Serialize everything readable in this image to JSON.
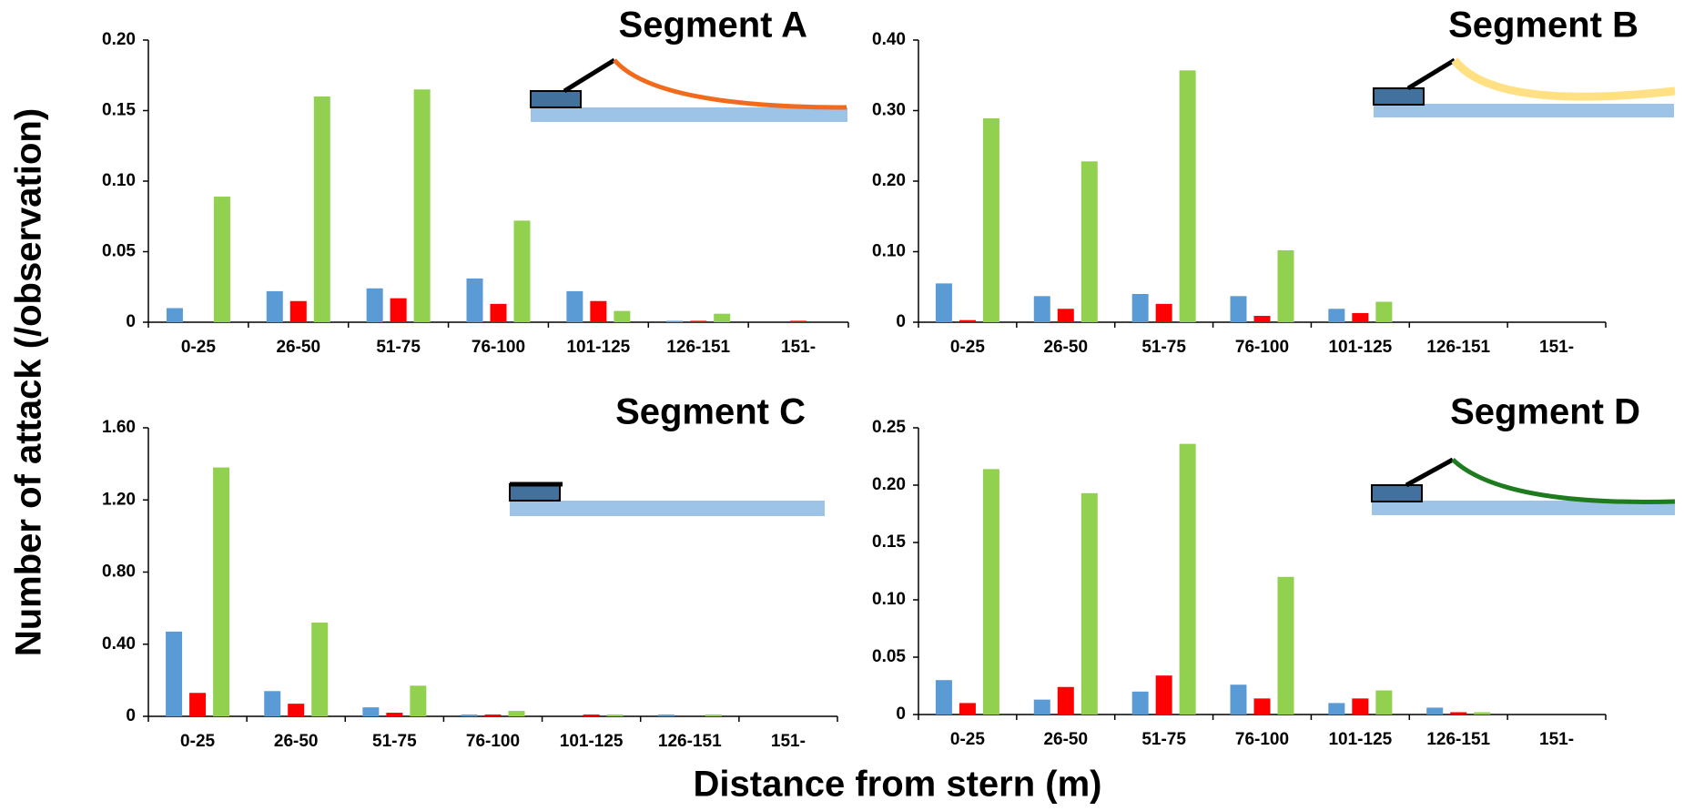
{
  "ylabel": "Number of attack (/observation)",
  "xlabel": "Distance from stern (m)",
  "chart_data": [
    {
      "type": "bar",
      "title": "Segment A",
      "categories": [
        "0-25",
        "26-50",
        "51-75",
        "76-100",
        "101-125",
        "126-151",
        "151-"
      ],
      "series": [
        {
          "color": "#5b9bd5",
          "values": [
            0.01,
            0.022,
            0.024,
            0.031,
            0.022,
            0.001,
            0
          ]
        },
        {
          "color": "#ff0000",
          "values": [
            0,
            0.015,
            0.017,
            0.013,
            0.015,
            0.001,
            0.001
          ]
        },
        {
          "color": "#92d050",
          "values": [
            0.089,
            0.16,
            0.165,
            0.072,
            0.008,
            0.006,
            0
          ]
        }
      ],
      "ylim": [
        0,
        0.2
      ],
      "yticks": [
        0,
        0.05,
        {
          "value": 0.1,
          "label": "0.10"
        },
        0.15,
        {
          "value": 0.2,
          "label": "0.20"
        }
      ]
    },
    {
      "type": "bar",
      "title": "Segment B",
      "categories": [
        "0-25",
        "26-50",
        "51-75",
        "76-100",
        "101-125",
        "126-151",
        "151-"
      ],
      "series": [
        {
          "color": "#5b9bd5",
          "values": [
            0.055,
            0.037,
            0.04,
            0.037,
            0.019,
            0,
            0
          ]
        },
        {
          "color": "#ff0000",
          "values": [
            0.003,
            0.019,
            0.026,
            0.009,
            0.013,
            0,
            0
          ]
        },
        {
          "color": "#92d050",
          "values": [
            0.289,
            0.228,
            0.357,
            0.102,
            0.029,
            0,
            0
          ]
        }
      ],
      "ylim": [
        0,
        0.4
      ],
      "yticks": [
        0,
        {
          "value": 0.1,
          "label": "0.10"
        },
        {
          "value": 0.2,
          "label": "0.20"
        },
        {
          "value": 0.3,
          "label": "0.30"
        },
        {
          "value": 0.4,
          "label": "0.40"
        }
      ]
    },
    {
      "type": "bar",
      "title": "Segment C",
      "categories": [
        "0-25",
        "26-50",
        "51-75",
        "76-100",
        "101-125",
        "126-151",
        "151-"
      ],
      "series": [
        {
          "color": "#5b9bd5",
          "values": [
            0.47,
            0.14,
            0.05,
            0.01,
            0,
            0.01,
            0
          ]
        },
        {
          "color": "#ff0000",
          "values": [
            0.13,
            0.07,
            0.02,
            0.01,
            0.01,
            0,
            0
          ]
        },
        {
          "color": "#92d050",
          "values": [
            1.38,
            0.52,
            0.17,
            0.03,
            0.01,
            0.01,
            0
          ]
        }
      ],
      "ylim": [
        0,
        1.6
      ],
      "yticks": [
        0,
        {
          "value": 0.4,
          "label": "0.40"
        },
        {
          "value": 0.8,
          "label": "0.80"
        },
        {
          "value": 1.2,
          "label": "1.20"
        },
        {
          "value": 1.6,
          "label": "1.60"
        }
      ]
    },
    {
      "type": "bar",
      "title": "Segment D",
      "categories": [
        "0-25",
        "26-50",
        "51-75",
        "76-100",
        "101-125",
        "126-151",
        "151-"
      ],
      "series": [
        {
          "color": "#5b9bd5",
          "values": [
            0.03,
            0.013,
            0.02,
            0.026,
            0.01,
            0.006,
            0
          ]
        },
        {
          "color": "#ff0000",
          "values": [
            0.01,
            0.024,
            0.034,
            0.014,
            0.014,
            0.002,
            0
          ]
        },
        {
          "color": "#92d050",
          "values": [
            0.214,
            0.193,
            0.236,
            0.12,
            0.021,
            0.002,
            0
          ]
        }
      ],
      "ylim": [
        0,
        0.25
      ],
      "yticks": [
        0,
        0.05,
        {
          "value": 0.1,
          "label": "0.10"
        },
        0.15,
        {
          "value": 0.2,
          "label": "0.20"
        },
        0.25
      ]
    }
  ]
}
